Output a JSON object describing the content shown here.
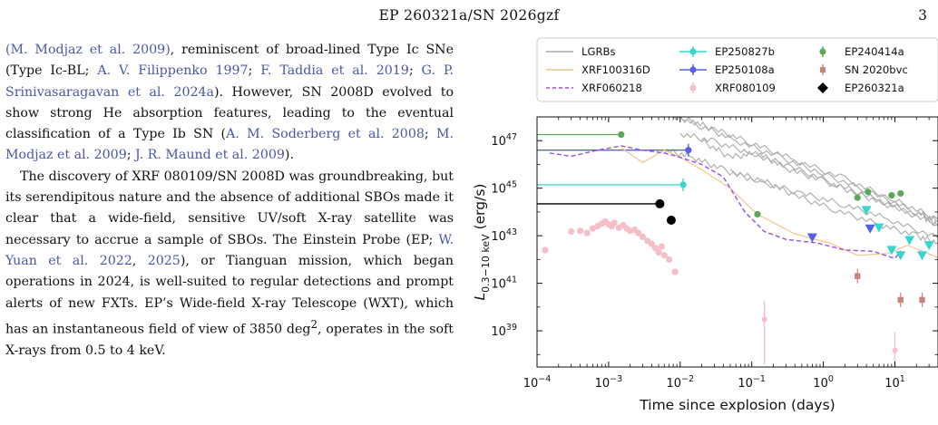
{
  "header": {
    "title": "EP 260321a/SN 2026gzf",
    "page_number": "3"
  },
  "body": {
    "paragraph1": [
      {
        "t": "(M. Modjaz et al. 2009)",
        "cite": true
      },
      {
        "t": ", reminiscent of broad-lined Type Ic SNe (Type Ic-BL; "
      },
      {
        "t": "A. V. Filippenko 1997",
        "cite": true
      },
      {
        "t": "; "
      },
      {
        "t": "F. Taddia et al. 2019",
        "cite": true
      },
      {
        "t": "; "
      },
      {
        "t": "G. P. Srinivasaragavan et al. 2024a",
        "cite": true
      },
      {
        "t": "). However, SN 2008D evolved to show strong He absorption features, leading to the eventual classification of a Type Ib SN ("
      },
      {
        "t": "A. M. Soderberg et al. 2008",
        "cite": true
      },
      {
        "t": "; "
      },
      {
        "t": "M. Modjaz et al. 2009",
        "cite": true
      },
      {
        "t": "; "
      },
      {
        "t": "J. R. Maund et al. 2009",
        "cite": true
      },
      {
        "t": ")."
      }
    ],
    "paragraph2": [
      {
        "t": "The discovery of XRF 080109/SN 2008D was groundbreaking, but its serendipitous nature and the absence of additional SBOs made it clear that a wide-field, sensitive UV/soft X-ray satellite was necessary to accrue a sample of SBOs. The Einstein Probe (EP; "
      },
      {
        "t": "W. Yuan et al. 2022",
        "cite": true
      },
      {
        "t": ", "
      },
      {
        "t": "2025",
        "cite": true
      },
      {
        "t": "), or Tianguan mission, which began operations in 2024, is well-suited to regular detections and prompt alerts of new FXTs. EP’s Wide-field X-ray Telescope (WXT), which has an instantaneous field of view of 3850 deg"
      },
      {
        "t": "2",
        "sup": true
      },
      {
        "t": ", operates in the soft X-rays from 0.5 to 4 keV."
      }
    ]
  },
  "chart_data": {
    "type": "scatter",
    "title": "",
    "xlabel": "Time since explosion (days)",
    "ylabel_main": "L",
    "ylabel_sub": "0.3−10 keV",
    "ylabel_rest": " (erg/s)",
    "xscale": "log",
    "yscale": "log",
    "xlim": [
      0.0001,
      40
    ],
    "ylim": [
      3e+37,
      1e+48
    ],
    "x_ticks": [
      {
        "value": 0.0001,
        "base": "10",
        "exp": "−4"
      },
      {
        "value": 0.001,
        "base": "10",
        "exp": "−3"
      },
      {
        "value": 0.01,
        "base": "10",
        "exp": "−2"
      },
      {
        "value": 0.1,
        "base": "10",
        "exp": "−1"
      },
      {
        "value": 1,
        "base": "10",
        "exp": "0"
      },
      {
        "value": 10,
        "base": "10",
        "exp": "1"
      }
    ],
    "y_ticks": [
      {
        "value": 1e+39,
        "base": "10",
        "exp": "39"
      },
      {
        "value": 1e+41,
        "base": "10",
        "exp": "41"
      },
      {
        "value": 1e+43,
        "base": "10",
        "exp": "43"
      },
      {
        "value": 1e+45,
        "base": "10",
        "exp": "45"
      },
      {
        "value": 1e+47,
        "base": "10",
        "exp": "47"
      }
    ],
    "grid": false,
    "legend_position": "top",
    "legend": [
      {
        "name": "LGRBs",
        "color": "#aaaaaa",
        "style": "line"
      },
      {
        "name": "EP250827b",
        "color": "#36d6cf",
        "style": "errbar-plus-dot"
      },
      {
        "name": "EP240414a",
        "color": "#5aa85a",
        "style": "errbar-dot"
      },
      {
        "name": "XRF100316D",
        "color": "#f3c58a",
        "style": "line"
      },
      {
        "name": "EP250108a",
        "color": "#5560e6",
        "style": "errbar-plus-dot"
      },
      {
        "name": "SN 2020bvc",
        "color": "#c7847e",
        "style": "errbar-square"
      },
      {
        "name": "XRF060218",
        "color": "#9b4fe6",
        "style": "dashed"
      },
      {
        "name": "XRF080109",
        "color": "#f5bfc8",
        "style": "errbar-dot"
      },
      {
        "name": "EP260321a",
        "color": "#000000",
        "style": "diamond"
      }
    ],
    "series": [
      {
        "name": "LGRBs",
        "kind": "lines",
        "color": "#aaaaaa",
        "lines": [
          [
            [
              0.0045,
              1.5e+48
            ],
            [
              0.012,
              8e+47
            ],
            [
              0.03,
              3e+47
            ],
            [
              0.1,
              8e+46
            ],
            [
              0.4,
              1.5e+46
            ],
            [
              2,
              2.5e+45
            ],
            [
              10,
              3e+44
            ],
            [
              40,
              5e+43
            ]
          ],
          [
            [
              0.008,
              1.2e+48
            ],
            [
              0.02,
              4e+47
            ],
            [
              0.06,
              1e+47
            ],
            [
              0.25,
              2e+46
            ],
            [
              1,
              4e+45
            ],
            [
              5,
              6e+44
            ],
            [
              20,
              1e+44
            ],
            [
              40,
              4e+43
            ]
          ],
          [
            [
              0.01,
              2e+47
            ],
            [
              0.03,
              9e+46
            ],
            [
              0.1,
              3e+46
            ],
            [
              0.35,
              8e+45
            ],
            [
              1.5,
              1.5e+45
            ],
            [
              6,
              3e+44
            ],
            [
              25,
              6e+43
            ],
            [
              40,
              3e+43
            ]
          ],
          [
            [
              0.02,
              1e+47
            ],
            [
              0.05,
              2e+46
            ],
            [
              0.12,
              3e+46
            ],
            [
              0.3,
              7e+45
            ],
            [
              1,
              2e+45
            ],
            [
              3,
              6e+44
            ],
            [
              10,
              1.5e+44
            ],
            [
              40,
              3e+43
            ]
          ],
          [
            [
              0.006,
              4e+46
            ],
            [
              0.015,
              2e+46
            ],
            [
              0.04,
              6e+45
            ],
            [
              0.12,
              2e+45
            ],
            [
              0.5,
              6e+44
            ],
            [
              2,
              2e+44
            ],
            [
              8,
              5e+43
            ],
            [
              40,
              8e+42
            ]
          ],
          [
            [
              0.05,
              5e+45
            ],
            [
              0.15,
              2e+45
            ],
            [
              0.4,
              5e+44
            ],
            [
              1.5,
              1.2e+44
            ],
            [
              6,
              3e+43
            ],
            [
              20,
              1e+43
            ],
            [
              40,
              5e+42
            ]
          ]
        ]
      },
      {
        "name": "XRF100316D",
        "kind": "line",
        "color": "#f3c58a",
        "points": [
          [
            0.0015,
            5e+46
          ],
          [
            0.003,
            1.2e+46
          ],
          [
            0.006,
            4e+46
          ],
          [
            0.01,
            2e+46
          ],
          [
            0.02,
            6e+45
          ],
          [
            0.05,
            1e+45
          ],
          [
            0.12,
            8e+43
          ],
          [
            0.4,
            1.2e+43
          ],
          [
            1.2,
            5e+42
          ],
          [
            3,
            1.5e+42
          ],
          [
            8,
            1.8e+42
          ],
          [
            15,
            4e+42
          ],
          [
            40,
            1.2e+42
          ]
        ]
      },
      {
        "name": "XRF060218",
        "kind": "dashed",
        "color": "#9b4fe6",
        "points": [
          [
            0.00015,
            3e+46
          ],
          [
            0.0003,
            2.2e+46
          ],
          [
            0.0007,
            4e+46
          ],
          [
            0.0015,
            6e+46
          ],
          [
            0.003,
            4e+46
          ],
          [
            0.006,
            3e+46
          ],
          [
            0.01,
            2e+46
          ],
          [
            0.02,
            1e+46
          ],
          [
            0.04,
            3e+45
          ],
          [
            0.08,
            1e+44
          ],
          [
            0.15,
            1.5e+43
          ],
          [
            0.3,
            7e+42
          ],
          [
            0.8,
            5e+42
          ],
          [
            2,
            2.5e+42
          ],
          [
            5,
            2.2e+42
          ],
          [
            10,
            1.1e+42
          ],
          [
            12,
            2.3e+42
          ]
        ]
      },
      {
        "name": "EP250827b",
        "kind": "markers",
        "marker": "tri-down",
        "color": "#36d6cf",
        "points": [
          [
            0.011,
            1.4e+45
          ],
          [
            4,
            1.2e+44
          ],
          [
            6,
            2.2e+43
          ],
          [
            9,
            2.5e+42
          ],
          [
            12,
            1.5e+42
          ],
          [
            16,
            6.5e+42
          ],
          [
            24,
            1.5e+42
          ],
          [
            30,
            4e+42
          ]
        ],
        "errbar_points": [
          [
            0.011,
            1.4e+45
          ]
        ],
        "hline": {
          "from": 0.0001,
          "to": 0.011,
          "y": 1.4e+45
        }
      },
      {
        "name": "EP250108a",
        "kind": "markers",
        "marker": "tri-down",
        "color": "#5560e6",
        "points": [
          [
            0.013,
            4e+46
          ],
          [
            0.7,
            8.5e+42
          ],
          [
            4.5,
            2e+43
          ]
        ],
        "errbar_points": [
          [
            0.013,
            4e+46
          ]
        ],
        "hline": {
          "from": 0.0001,
          "to": 0.013,
          "y": 4e+46
        }
      },
      {
        "name": "EP240414a",
        "kind": "markers",
        "marker": "circle",
        "color": "#5aa85a",
        "points": [
          [
            0.0015,
            1.8e+47
          ],
          [
            0.12,
            8e+43
          ],
          [
            3,
            4e+44
          ],
          [
            4.2,
            7e+44
          ],
          [
            9,
            5e+44
          ],
          [
            12,
            6e+44
          ]
        ],
        "hline": {
          "from": 0.0001,
          "to": 0.0015,
          "y": 1.8e+47
        }
      },
      {
        "name": "SN 2020bvc",
        "kind": "markers",
        "marker": "square",
        "color": "#c7847e",
        "points": [
          [
            3,
            2e+41
          ],
          [
            12,
            2e+40
          ],
          [
            24,
            2e+40
          ]
        ]
      },
      {
        "name": "XRF080109",
        "kind": "markers",
        "marker": "circle",
        "color": "#f5bfc8",
        "points": [
          [
            0.00013,
            2.5e+42
          ],
          [
            0.0003,
            1.5e+43
          ],
          [
            0.0004,
            1.6e+43
          ],
          [
            0.0005,
            1.3e+43
          ],
          [
            0.0006,
            2e+43
          ],
          [
            0.0007,
            2.5e+43
          ],
          [
            0.0008,
            3.2e+43
          ],
          [
            0.0009,
            4e+43
          ],
          [
            0.001,
            3e+43
          ],
          [
            0.0011,
            2.5e+43
          ],
          [
            0.0012,
            3.5e+43
          ],
          [
            0.0014,
            2.2e+43
          ],
          [
            0.0016,
            2.8e+43
          ],
          [
            0.0018,
            2e+43
          ],
          [
            0.002,
            1.6e+43
          ],
          [
            0.0023,
            1.8e+43
          ],
          [
            0.0026,
            1.3e+43
          ],
          [
            0.003,
            9e+42
          ],
          [
            0.0035,
            6e+42
          ],
          [
            0.004,
            4.5e+42
          ],
          [
            0.0045,
            3e+42
          ],
          [
            0.005,
            2e+42
          ],
          [
            0.0055,
            3.5e+42
          ],
          [
            0.006,
            1.5e+42
          ],
          [
            0.007,
            1e+42
          ],
          [
            0.0085,
            3e+41
          ],
          [
            0.15,
            3e+39
          ],
          [
            10,
            1.5e+38
          ]
        ],
        "errbar_points": [
          [
            0.15,
            3e+39
          ],
          [
            10,
            1.5e+38
          ]
        ]
      },
      {
        "name": "EP260321a",
        "kind": "markers",
        "marker": "circle-filled",
        "color": "#000000",
        "points": [
          [
            0.0052,
            2.2e+44
          ],
          [
            0.0075,
            4.5e+43
          ]
        ],
        "hline": {
          "from": 0.0001,
          "to": 0.0052,
          "y": 2.2e+44
        }
      }
    ]
  }
}
